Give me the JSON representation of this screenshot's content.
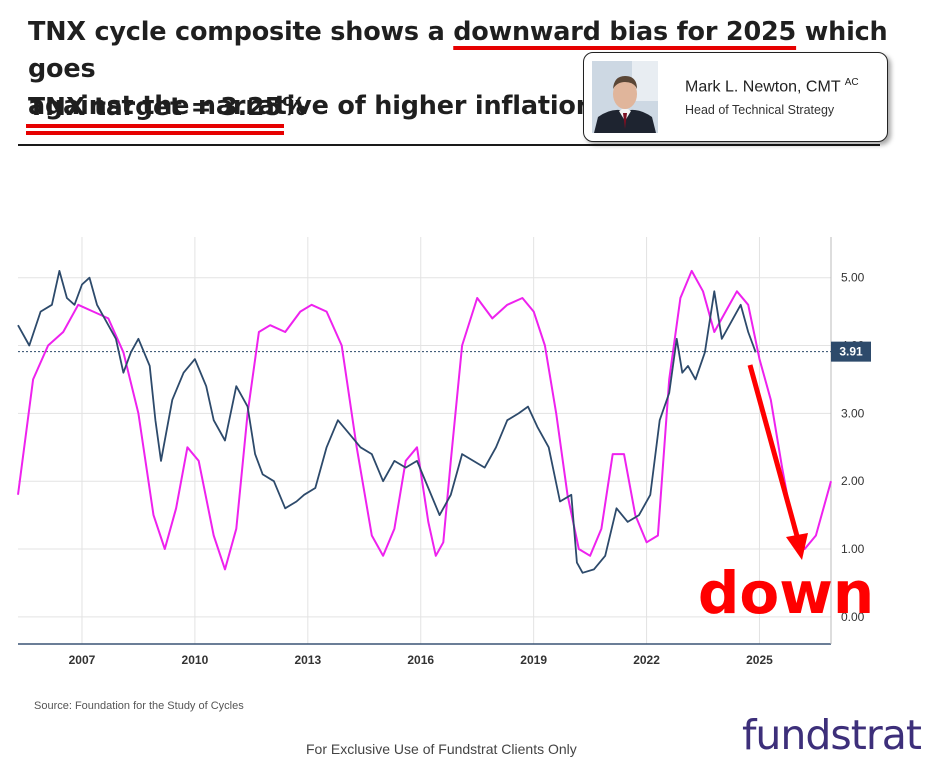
{
  "header": {
    "line1_pre": "TNX cycle composite shows a ",
    "line1_highlight": "downward bias for 2025",
    "line1_post": " which goes",
    "line2": "against the narrative of higher inflation.",
    "target": "TNX target = 3.25%"
  },
  "author": {
    "name": "Mark L. Newton, CMT",
    "name_suffix": "AC",
    "role": "Head of Technical Strategy"
  },
  "annotation": {
    "text": "down",
    "color": "#ff0000"
  },
  "source": "Source:  Foundation for the Study of Cycles",
  "footer": "For Exclusive Use of Fundstrat Clients Only",
  "brand": "fundstrat",
  "chart_data": {
    "type": "line",
    "x_tick_labels": [
      "2007",
      "2010",
      "2013",
      "2016",
      "2019",
      "2022",
      "2025"
    ],
    "y_tick_labels": [
      "5.00",
      "4.00",
      "3.00",
      "2.00",
      "1.00",
      "0.00"
    ],
    "y_ticks": [
      5,
      4,
      3,
      2,
      1,
      0
    ],
    "x_ticks": [
      2007,
      2010,
      2013,
      2016,
      2019,
      2022,
      2025
    ],
    "xlim": [
      2005.3,
      2026.9
    ],
    "ylim": [
      -0.4,
      5.6
    ],
    "grid": true,
    "last_value_label": "3.91",
    "last_value": 3.91,
    "series": [
      {
        "color": "#2d4a6b",
        "x": [
          2005.3,
          2005.6,
          2005.9,
          2006.2,
          2006.4,
          2006.6,
          2006.8,
          2007.0,
          2007.2,
          2007.4,
          2007.6,
          2007.9,
          2008.1,
          2008.3,
          2008.5,
          2008.8,
          2008.95,
          2009.1,
          2009.4,
          2009.7,
          2010.0,
          2010.3,
          2010.5,
          2010.8,
          2011.1,
          2011.4,
          2011.6,
          2011.8,
          2012.1,
          2012.4,
          2012.7,
          2012.9,
          2013.2,
          2013.5,
          2013.8,
          2014.1,
          2014.4,
          2014.7,
          2015.0,
          2015.3,
          2015.6,
          2015.9,
          2016.2,
          2016.5,
          2016.8,
          2017.1,
          2017.4,
          2017.7,
          2018.0,
          2018.3,
          2018.6,
          2018.85,
          2019.1,
          2019.4,
          2019.7,
          2020.0,
          2020.15,
          2020.3,
          2020.6,
          2020.9,
          2021.2,
          2021.5,
          2021.8,
          2022.1,
          2022.35,
          2022.6,
          2022.8,
          2022.95,
          2023.1,
          2023.3,
          2023.55,
          2023.8,
          2024.0,
          2024.2,
          2024.5,
          2024.7,
          2024.9
        ],
        "y": [
          4.3,
          4.0,
          4.5,
          4.6,
          5.1,
          4.7,
          4.6,
          4.9,
          5.0,
          4.6,
          4.4,
          4.1,
          3.6,
          3.9,
          4.1,
          3.7,
          2.9,
          2.3,
          3.2,
          3.6,
          3.8,
          3.4,
          2.9,
          2.6,
          3.4,
          3.1,
          2.4,
          2.1,
          2.0,
          1.6,
          1.7,
          1.8,
          1.9,
          2.5,
          2.9,
          2.7,
          2.5,
          2.4,
          2.0,
          2.3,
          2.2,
          2.3,
          1.9,
          1.5,
          1.8,
          2.4,
          2.3,
          2.2,
          2.5,
          2.9,
          3.0,
          3.1,
          2.8,
          2.5,
          1.7,
          1.8,
          0.8,
          0.65,
          0.7,
          0.9,
          1.6,
          1.4,
          1.5,
          1.8,
          2.9,
          3.3,
          4.1,
          3.6,
          3.7,
          3.5,
          3.9,
          4.8,
          4.1,
          4.3,
          4.6,
          4.2,
          3.9
        ]
      },
      {
        "color": "#ee22ee",
        "x": [
          2005.3,
          2005.7,
          2006.1,
          2006.5,
          2006.9,
          2007.3,
          2007.7,
          2008.1,
          2008.5,
          2008.9,
          2009.2,
          2009.5,
          2009.8,
          2010.1,
          2010.5,
          2010.8,
          2011.1,
          2011.4,
          2011.7,
          2012.0,
          2012.4,
          2012.8,
          2013.1,
          2013.5,
          2013.9,
          2014.3,
          2014.7,
          2015.0,
          2015.3,
          2015.6,
          2015.9,
          2016.2,
          2016.4,
          2016.6,
          2016.8,
          2017.1,
          2017.5,
          2017.9,
          2018.3,
          2018.7,
          2019.0,
          2019.3,
          2019.6,
          2019.9,
          2020.2,
          2020.5,
          2020.8,
          2021.1,
          2021.4,
          2021.7,
          2022.0,
          2022.3,
          2022.6,
          2022.9,
          2023.2,
          2023.5,
          2023.8,
          2024.1,
          2024.4,
          2024.7,
          2025.0,
          2025.3,
          2025.6,
          2025.9,
          2026.2,
          2026.5,
          2026.9
        ],
        "y": [
          1.8,
          3.5,
          4.0,
          4.2,
          4.6,
          4.5,
          4.4,
          3.9,
          3.0,
          1.5,
          1.0,
          1.6,
          2.5,
          2.3,
          1.2,
          0.7,
          1.3,
          3.0,
          4.2,
          4.3,
          4.2,
          4.5,
          4.6,
          4.5,
          4.0,
          2.5,
          1.2,
          0.9,
          1.3,
          2.3,
          2.5,
          1.4,
          0.9,
          1.1,
          2.3,
          4.0,
          4.7,
          4.4,
          4.6,
          4.7,
          4.5,
          4.0,
          3.0,
          1.8,
          1.0,
          0.9,
          1.3,
          2.4,
          2.4,
          1.5,
          1.1,
          1.2,
          3.5,
          4.7,
          5.1,
          4.8,
          4.2,
          4.5,
          4.8,
          4.6,
          3.8,
          3.2,
          2.2,
          1.3,
          1.0,
          1.2,
          2.0
        ]
      }
    ]
  }
}
